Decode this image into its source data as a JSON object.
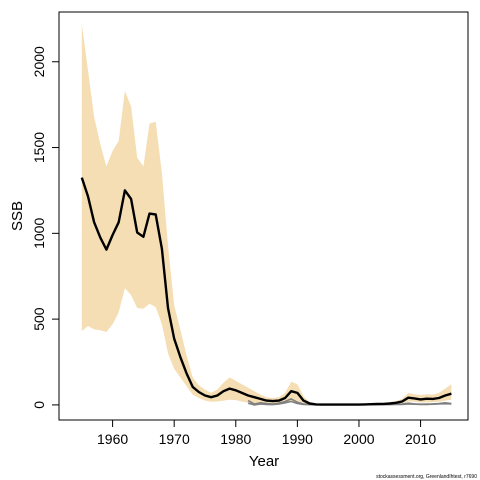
{
  "chart_data": {
    "type": "area",
    "xlabel": "Year",
    "ylabel": "SSB",
    "credit": "stockassessment.org, GreenlandIhtest, r7690",
    "xlim": [
      1951.3,
      2017.7
    ],
    "ylim": [
      -88,
      2290
    ],
    "x_ticks": [
      1960,
      1970,
      1980,
      1990,
      2000,
      2010
    ],
    "y_ticks": [
      0,
      500,
      1000,
      1500,
      2000
    ],
    "grid": false,
    "legend": "none",
    "colors": {
      "band": "#f5deb3",
      "estimate": "#000000",
      "retro": "#808080"
    },
    "series": [
      {
        "role": "estimate",
        "points": [
          [
            1955,
            1325
          ],
          [
            1956,
            1215
          ],
          [
            1957,
            1065
          ],
          [
            1958,
            975
          ],
          [
            1959,
            905
          ],
          [
            1960,
            990
          ],
          [
            1961,
            1065
          ],
          [
            1962,
            1250
          ],
          [
            1963,
            1200
          ],
          [
            1964,
            1005
          ],
          [
            1965,
            980
          ],
          [
            1966,
            1115
          ],
          [
            1967,
            1110
          ],
          [
            1968,
            910
          ],
          [
            1969,
            565
          ],
          [
            1970,
            385
          ],
          [
            1971,
            280
          ],
          [
            1972,
            185
          ],
          [
            1973,
            105
          ],
          [
            1974,
            75
          ],
          [
            1975,
            55
          ],
          [
            1976,
            45
          ],
          [
            1977,
            55
          ],
          [
            1978,
            80
          ],
          [
            1979,
            95
          ],
          [
            1980,
            85
          ],
          [
            1981,
            70
          ],
          [
            1982,
            55
          ],
          [
            1983,
            45
          ],
          [
            1984,
            35
          ],
          [
            1985,
            25
          ],
          [
            1986,
            22
          ],
          [
            1987,
            25
          ],
          [
            1988,
            40
          ],
          [
            1989,
            80
          ],
          [
            1990,
            70
          ],
          [
            1991,
            25
          ],
          [
            1992,
            8
          ],
          [
            1993,
            3
          ],
          [
            1994,
            2
          ],
          [
            1995,
            2
          ],
          [
            1996,
            2
          ],
          [
            1997,
            2
          ],
          [
            1998,
            2
          ],
          [
            1999,
            2
          ],
          [
            2000,
            2
          ],
          [
            2001,
            3
          ],
          [
            2002,
            4
          ],
          [
            2003,
            5
          ],
          [
            2004,
            6
          ],
          [
            2005,
            8
          ],
          [
            2006,
            12
          ],
          [
            2007,
            20
          ],
          [
            2008,
            42
          ],
          [
            2009,
            38
          ],
          [
            2010,
            32
          ],
          [
            2011,
            36
          ],
          [
            2012,
            35
          ],
          [
            2013,
            40
          ],
          [
            2014,
            55
          ],
          [
            2015,
            65
          ]
        ]
      },
      {
        "role": "retro",
        "points": [
          [
            1982,
            25
          ],
          [
            1983,
            5
          ],
          [
            1984,
            12
          ],
          [
            1985,
            8
          ],
          [
            1986,
            5
          ],
          [
            1987,
            10
          ],
          [
            1988,
            20
          ],
          [
            1989,
            35
          ],
          [
            1990,
            15
          ],
          [
            1991,
            5
          ],
          [
            1992,
            3
          ],
          [
            1993,
            2
          ],
          [
            1994,
            2
          ],
          [
            1995,
            2
          ],
          [
            1996,
            2
          ],
          [
            1997,
            2
          ],
          [
            1998,
            2
          ],
          [
            1999,
            2
          ],
          [
            2000,
            2
          ],
          [
            2001,
            2
          ],
          [
            2002,
            2
          ],
          [
            2003,
            3
          ],
          [
            2004,
            3
          ],
          [
            2005,
            4
          ],
          [
            2006,
            4
          ],
          [
            2007,
            5
          ],
          [
            2008,
            10
          ],
          [
            2009,
            6
          ],
          [
            2010,
            4
          ],
          [
            2011,
            5
          ],
          [
            2012,
            6
          ],
          [
            2013,
            8
          ],
          [
            2014,
            12
          ],
          [
            2015,
            8
          ]
        ]
      },
      {
        "role": "retro",
        "points": [
          [
            1982,
            10
          ],
          [
            1983,
            0
          ],
          [
            1984,
            5
          ],
          [
            1985,
            3
          ],
          [
            1986,
            2
          ],
          [
            1987,
            5
          ],
          [
            1988,
            12
          ],
          [
            1989,
            20
          ],
          [
            1990,
            8
          ],
          [
            1991,
            3
          ],
          [
            1992,
            2
          ],
          [
            1993,
            1
          ],
          [
            1994,
            1
          ],
          [
            1995,
            1
          ],
          [
            1996,
            1
          ],
          [
            1997,
            1
          ],
          [
            1998,
            1
          ],
          [
            1999,
            1
          ],
          [
            2000,
            1
          ],
          [
            2001,
            1
          ],
          [
            2002,
            1
          ],
          [
            2003,
            2
          ],
          [
            2004,
            2
          ],
          [
            2005,
            2
          ],
          [
            2006,
            3
          ],
          [
            2007,
            3
          ],
          [
            2008,
            6
          ],
          [
            2009,
            4
          ],
          [
            2010,
            3
          ],
          [
            2011,
            3
          ],
          [
            2012,
            4
          ],
          [
            2013,
            5
          ],
          [
            2014,
            7
          ],
          [
            2015,
            5
          ]
        ]
      }
    ],
    "band": {
      "role": "confidence interval",
      "points": [
        [
          1955,
          2220,
          430
        ],
        [
          1956,
          1950,
          460
        ],
        [
          1957,
          1680,
          440
        ],
        [
          1958,
          1520,
          435
        ],
        [
          1959,
          1390,
          425
        ],
        [
          1960,
          1480,
          470
        ],
        [
          1961,
          1540,
          540
        ],
        [
          1962,
          1830,
          680
        ],
        [
          1963,
          1740,
          640
        ],
        [
          1964,
          1440,
          565
        ],
        [
          1965,
          1390,
          560
        ],
        [
          1966,
          1640,
          590
        ],
        [
          1967,
          1650,
          570
        ],
        [
          1968,
          1350,
          470
        ],
        [
          1969,
          930,
          300
        ],
        [
          1970,
          580,
          210
        ],
        [
          1971,
          440,
          160
        ],
        [
          1972,
          290,
          110
        ],
        [
          1973,
          160,
          60
        ],
        [
          1974,
          115,
          40
        ],
        [
          1975,
          90,
          25
        ],
        [
          1976,
          70,
          18
        ],
        [
          1977,
          90,
          20
        ],
        [
          1978,
          130,
          25
        ],
        [
          1979,
          160,
          30
        ],
        [
          1980,
          140,
          28
        ],
        [
          1981,
          120,
          20
        ],
        [
          1982,
          100,
          12
        ],
        [
          1983,
          80,
          8
        ],
        [
          1984,
          60,
          6
        ],
        [
          1985,
          45,
          4
        ],
        [
          1986,
          40,
          3
        ],
        [
          1987,
          45,
          4
        ],
        [
          1988,
          70,
          8
        ],
        [
          1989,
          135,
          20
        ],
        [
          1990,
          120,
          15
        ],
        [
          1991,
          50,
          5
        ],
        [
          1992,
          15,
          1
        ],
        [
          1993,
          6,
          1
        ],
        [
          1994,
          5,
          1
        ],
        [
          1995,
          5,
          1
        ],
        [
          1996,
          5,
          1
        ],
        [
          1997,
          5,
          1
        ],
        [
          1998,
          5,
          1
        ],
        [
          1999,
          5,
          1
        ],
        [
          2000,
          5,
          1
        ],
        [
          2001,
          6,
          1
        ],
        [
          2002,
          8,
          1
        ],
        [
          2003,
          10,
          2
        ],
        [
          2004,
          12,
          2
        ],
        [
          2005,
          16,
          2
        ],
        [
          2006,
          22,
          3
        ],
        [
          2007,
          35,
          6
        ],
        [
          2008,
          70,
          20
        ],
        [
          2009,
          62,
          18
        ],
        [
          2010,
          58,
          14
        ],
        [
          2011,
          62,
          16
        ],
        [
          2012,
          60,
          16
        ],
        [
          2013,
          70,
          18
        ],
        [
          2014,
          95,
          25
        ],
        [
          2015,
          120,
          30
        ]
      ]
    }
  }
}
